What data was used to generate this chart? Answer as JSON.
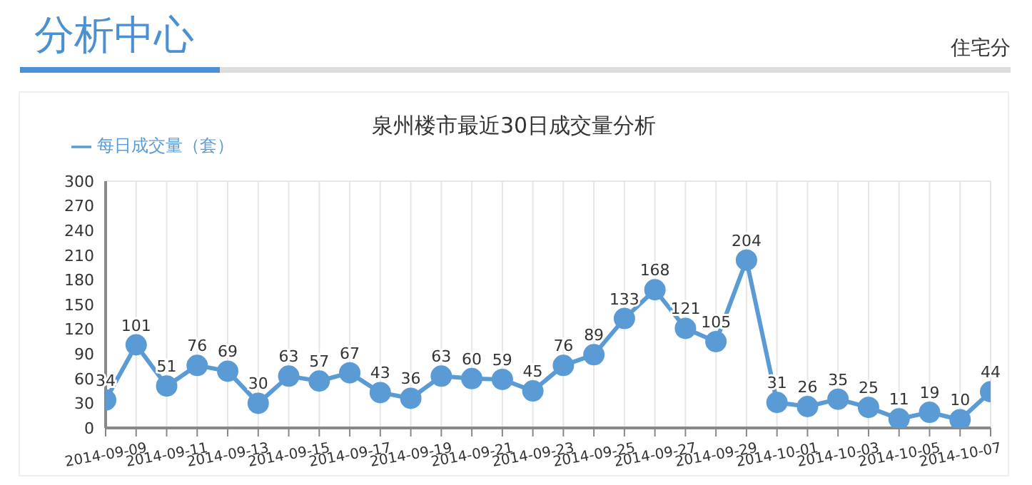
{
  "chart_data": {
    "type": "line",
    "title": "泉州楼市最近30日成交量分析",
    "annotations": [
      "分析中心",
      "住宅分"
    ],
    "categories": [
      "2014-09-09",
      null,
      "2014-09-11",
      null,
      "2014-09-13",
      null,
      "2014-09-15",
      null,
      "2014-09-17",
      null,
      "2014-09-19",
      null,
      "2014-09-21",
      null,
      "2014-09-23",
      null,
      "2014-09-25",
      null,
      "2014-09-27",
      null,
      "2014-09-29",
      null,
      "2014-10-01",
      null,
      "2014-10-03",
      null,
      "2014-10-05",
      null,
      "2014-10-07",
      null
    ],
    "series": [
      {
        "name": "每日成交量（套）",
        "color": "#5b9bd5",
        "values": [
          34,
          101,
          51,
          76,
          69,
          30,
          63,
          57,
          67,
          43,
          36,
          63,
          60,
          59,
          45,
          76,
          89,
          133,
          168,
          121,
          105,
          204,
          31,
          26,
          35,
          25,
          11,
          19,
          10,
          44
        ]
      }
    ],
    "ylim": [
      0,
      300
    ],
    "yticks": [
      0,
      30,
      60,
      90,
      120,
      150,
      180,
      210,
      240,
      270,
      300
    ],
    "grid": true,
    "legend": "top left",
    "marker": "circle",
    "line_style": "solid",
    "data_labels": true
  }
}
